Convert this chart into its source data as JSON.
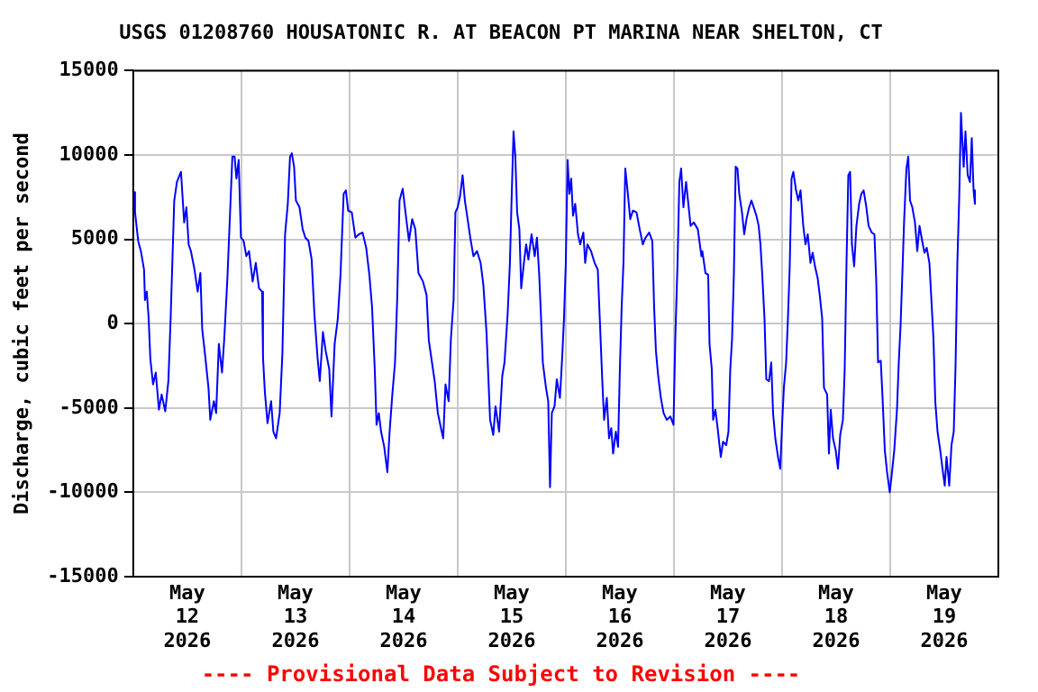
{
  "chart_data": {
    "type": "line",
    "title": "USGS 01208760 HOUSATONIC R. AT BEACON PT MARINA NEAR SHELTON, CT",
    "ylabel": "Discharge, cubic feet per second",
    "annotations": [
      "---- Provisional Data Subject to Revision ----"
    ],
    "xlim": [
      "2026-05-12T00:00",
      "2026-05-20T00:00"
    ],
    "xticks": [
      {
        "value": "2026-05-12T00:00",
        "label": null
      },
      {
        "value": "2026-05-12T12:00",
        "label": "May 12 2026"
      },
      {
        "value": "2026-05-13T00:00",
        "label": null
      },
      {
        "value": "2026-05-13T12:00",
        "label": "May 13 2026"
      },
      {
        "value": "2026-05-14T00:00",
        "label": null
      },
      {
        "value": "2026-05-14T12:00",
        "label": "May 14 2026"
      },
      {
        "value": "2026-05-15T00:00",
        "label": null
      },
      {
        "value": "2026-05-15T12:00",
        "label": "May 15 2026"
      },
      {
        "value": "2026-05-16T00:00",
        "label": null
      },
      {
        "value": "2026-05-16T12:00",
        "label": "May 16 2026"
      },
      {
        "value": "2026-05-17T00:00",
        "label": null
      },
      {
        "value": "2026-05-17T12:00",
        "label": "May 17 2026"
      },
      {
        "value": "2026-05-18T00:00",
        "label": null
      },
      {
        "value": "2026-05-18T12:00",
        "label": "May 18 2026"
      },
      {
        "value": "2026-05-19T00:00",
        "label": null
      },
      {
        "value": "2026-05-19T12:00",
        "label": "May 19 2026"
      },
      {
        "value": "2026-05-20T00:00",
        "label": null
      }
    ],
    "ylim": [
      -15000,
      15000
    ],
    "yticks": [
      -15000,
      -10000,
      -5000,
      0,
      5000,
      10000,
      15000
    ],
    "grid": true,
    "legend": false,
    "marker": "none",
    "line_style": "solid",
    "x": [
      "2026-05-12T00:12",
      "2026-05-12T00:24",
      "2026-05-12T01:06",
      "2026-05-12T01:42",
      "2026-05-12T02:24",
      "2026-05-12T02:36",
      "2026-05-12T03:00",
      "2026-05-12T03:24",
      "2026-05-12T03:48",
      "2026-05-12T04:24",
      "2026-05-12T05:00",
      "2026-05-12T05:42",
      "2026-05-12T06:18",
      "2026-05-12T07:06",
      "2026-05-12T07:48",
      "2026-05-12T08:18",
      "2026-05-12T09:06",
      "2026-05-12T09:42",
      "2026-05-12T10:36",
      "2026-05-12T11:18",
      "2026-05-12T11:48",
      "2026-05-12T12:18",
      "2026-05-12T12:48",
      "2026-05-12T13:36",
      "2026-05-12T14:18",
      "2026-05-12T14:54",
      "2026-05-12T15:18",
      "2026-05-12T16:00",
      "2026-05-12T16:42",
      "2026-05-12T17:06",
      "2026-05-12T17:54",
      "2026-05-12T18:24",
      "2026-05-12T19:00",
      "2026-05-12T19:42",
      "2026-05-12T20:12",
      "2026-05-12T20:54",
      "2026-05-12T21:36",
      "2026-05-12T22:00",
      "2026-05-12T22:30",
      "2026-05-12T22:54",
      "2026-05-12T23:24",
      "2026-05-12T23:54",
      "2026-05-13T00:30",
      "2026-05-13T01:06",
      "2026-05-13T01:42",
      "2026-05-13T02:30",
      "2026-05-13T03:12",
      "2026-05-13T03:54",
      "2026-05-13T04:36",
      "2026-05-13T04:48",
      "2026-05-13T05:12",
      "2026-05-13T05:48",
      "2026-05-13T06:36",
      "2026-05-13T07:06",
      "2026-05-13T07:42",
      "2026-05-13T08:30",
      "2026-05-13T09:06",
      "2026-05-13T09:42",
      "2026-05-13T10:18",
      "2026-05-13T10:48",
      "2026-05-13T11:12",
      "2026-05-13T11:42",
      "2026-05-13T12:06",
      "2026-05-13T12:54",
      "2026-05-13T13:36",
      "2026-05-13T14:12",
      "2026-05-13T14:54",
      "2026-05-13T15:36",
      "2026-05-13T16:12",
      "2026-05-13T16:54",
      "2026-05-13T17:24",
      "2026-05-13T18:06",
      "2026-05-13T18:42",
      "2026-05-13T19:30",
      "2026-05-13T20:00",
      "2026-05-13T20:42",
      "2026-05-13T21:24",
      "2026-05-13T22:00",
      "2026-05-13T22:42",
      "2026-05-13T23:12",
      "2026-05-13T23:42",
      "2026-05-14T00:30",
      "2026-05-14T01:18",
      "2026-05-14T02:06",
      "2026-05-14T02:54",
      "2026-05-14T03:42",
      "2026-05-14T04:24",
      "2026-05-14T05:00",
      "2026-05-14T05:36",
      "2026-05-14T06:00",
      "2026-05-14T06:30",
      "2026-05-14T07:00",
      "2026-05-14T07:42",
      "2026-05-14T08:24",
      "2026-05-14T08:54",
      "2026-05-14T09:30",
      "2026-05-14T10:06",
      "2026-05-14T10:36",
      "2026-05-14T11:06",
      "2026-05-14T11:48",
      "2026-05-14T12:36",
      "2026-05-14T13:12",
      "2026-05-14T13:54",
      "2026-05-14T14:36",
      "2026-05-14T15:18",
      "2026-05-14T16:18",
      "2026-05-14T17:06",
      "2026-05-14T17:36",
      "2026-05-14T18:18",
      "2026-05-14T18:54",
      "2026-05-14T19:36",
      "2026-05-14T20:18",
      "2026-05-14T20:48",
      "2026-05-14T21:18",
      "2026-05-14T22:00",
      "2026-05-14T22:30",
      "2026-05-14T23:06",
      "2026-05-14T23:30",
      "2026-05-15T00:00",
      "2026-05-15T00:30",
      "2026-05-15T01:06",
      "2026-05-15T01:36",
      "2026-05-15T02:06",
      "2026-05-15T02:48",
      "2026-05-15T03:30",
      "2026-05-15T04:18",
      "2026-05-15T05:06",
      "2026-05-15T05:42",
      "2026-05-15T06:24",
      "2026-05-15T06:48",
      "2026-05-15T07:12",
      "2026-05-15T07:54",
      "2026-05-15T08:24",
      "2026-05-15T09:12",
      "2026-05-15T09:54",
      "2026-05-15T10:24",
      "2026-05-15T11:06",
      "2026-05-15T11:36",
      "2026-05-15T11:54",
      "2026-05-15T12:24",
      "2026-05-15T12:48",
      "2026-05-15T13:12",
      "2026-05-15T13:42",
      "2026-05-15T14:06",
      "2026-05-15T14:42",
      "2026-05-15T15:12",
      "2026-05-15T15:42",
      "2026-05-15T16:24",
      "2026-05-15T17:06",
      "2026-05-15T17:36",
      "2026-05-15T18:06",
      "2026-05-15T18:30",
      "2026-05-15T18:54",
      "2026-05-15T19:36",
      "2026-05-15T20:06",
      "2026-05-15T20:30",
      "2026-05-15T20:54",
      "2026-05-15T21:30",
      "2026-05-15T22:00",
      "2026-05-15T22:42",
      "2026-05-15T23:12",
      "2026-05-15T23:36",
      "2026-05-16T00:00",
      "2026-05-16T00:24",
      "2026-05-16T00:48",
      "2026-05-16T01:12",
      "2026-05-16T01:36",
      "2026-05-16T02:06",
      "2026-05-16T02:42",
      "2026-05-16T03:12",
      "2026-05-16T03:54",
      "2026-05-16T04:18",
      "2026-05-16T04:48",
      "2026-05-16T05:36",
      "2026-05-16T06:24",
      "2026-05-16T07:06",
      "2026-05-16T07:36",
      "2026-05-16T08:06",
      "2026-05-16T08:30",
      "2026-05-16T09:06",
      "2026-05-16T09:36",
      "2026-05-16T10:06",
      "2026-05-16T10:30",
      "2026-05-16T11:06",
      "2026-05-16T11:36",
      "2026-05-16T12:00",
      "2026-05-16T12:24",
      "2026-05-16T12:48",
      "2026-05-16T13:12",
      "2026-05-16T13:42",
      "2026-05-16T14:18",
      "2026-05-16T14:54",
      "2026-05-16T15:42",
      "2026-05-16T16:24",
      "2026-05-16T17:06",
      "2026-05-16T17:42",
      "2026-05-16T18:30",
      "2026-05-16T19:12",
      "2026-05-16T19:36",
      "2026-05-16T20:00",
      "2026-05-16T20:30",
      "2026-05-16T21:06",
      "2026-05-16T21:42",
      "2026-05-16T22:24",
      "2026-05-16T23:12",
      "2026-05-16T23:54",
      "2026-05-17T00:18",
      "2026-05-17T00:48",
      "2026-05-17T01:12",
      "2026-05-17T01:36",
      "2026-05-17T02:06",
      "2026-05-17T02:42",
      "2026-05-17T03:12",
      "2026-05-17T03:42",
      "2026-05-17T04:24",
      "2026-05-17T05:18",
      "2026-05-17T06:06",
      "2026-05-17T06:18",
      "2026-05-17T07:00",
      "2026-05-17T07:36",
      "2026-05-17T07:54",
      "2026-05-17T08:24",
      "2026-05-17T08:42",
      "2026-05-17T09:12",
      "2026-05-17T09:42",
      "2026-05-17T10:24",
      "2026-05-17T10:54",
      "2026-05-17T11:36",
      "2026-05-17T12:06",
      "2026-05-17T12:30",
      "2026-05-17T12:54",
      "2026-05-17T13:18",
      "2026-05-17T13:42",
      "2026-05-17T14:06",
      "2026-05-17T14:30",
      "2026-05-17T15:06",
      "2026-05-17T15:36",
      "2026-05-17T16:06",
      "2026-05-17T16:42",
      "2026-05-17T17:12",
      "2026-05-17T17:42",
      "2026-05-17T18:18",
      "2026-05-17T18:48",
      "2026-05-17T19:12",
      "2026-05-17T19:36",
      "2026-05-17T20:06",
      "2026-05-17T20:30",
      "2026-05-17T21:06",
      "2026-05-17T21:36",
      "2026-05-17T22:00",
      "2026-05-17T22:30",
      "2026-05-17T23:06",
      "2026-05-17T23:36",
      "2026-05-18T00:00",
      "2026-05-18T00:24",
      "2026-05-18T00:54",
      "2026-05-18T01:18",
      "2026-05-18T01:42",
      "2026-05-18T02:06",
      "2026-05-18T02:30",
      "2026-05-18T03:06",
      "2026-05-18T03:36",
      "2026-05-18T04:06",
      "2026-05-18T04:42",
      "2026-05-18T05:12",
      "2026-05-18T05:42",
      "2026-05-18T06:18",
      "2026-05-18T06:48",
      "2026-05-18T07:18",
      "2026-05-18T07:54",
      "2026-05-18T08:24",
      "2026-05-18T08:54",
      "2026-05-18T09:18",
      "2026-05-18T10:00",
      "2026-05-18T10:24",
      "2026-05-18T10:48",
      "2026-05-18T11:18",
      "2026-05-18T11:54",
      "2026-05-18T12:24",
      "2026-05-18T12:54",
      "2026-05-18T13:30",
      "2026-05-18T13:54",
      "2026-05-18T14:18",
      "2026-05-18T14:42",
      "2026-05-18T15:06",
      "2026-05-18T15:30",
      "2026-05-18T16:00",
      "2026-05-18T16:30",
      "2026-05-18T17:06",
      "2026-05-18T17:36",
      "2026-05-18T18:06",
      "2026-05-18T18:42",
      "2026-05-18T19:12",
      "2026-05-18T19:54",
      "2026-05-18T20:30",
      "2026-05-18T20:54",
      "2026-05-18T21:18",
      "2026-05-18T21:54",
      "2026-05-18T22:18",
      "2026-05-18T22:48",
      "2026-05-18T23:18",
      "2026-05-18T23:54",
      "2026-05-19T00:24",
      "2026-05-19T00:54",
      "2026-05-19T01:30",
      "2026-05-19T01:54",
      "2026-05-19T02:18",
      "2026-05-19T02:42",
      "2026-05-19T03:06",
      "2026-05-19T03:36",
      "2026-05-19T04:00",
      "2026-05-19T04:24",
      "2026-05-19T04:54",
      "2026-05-19T05:30",
      "2026-05-19T06:00",
      "2026-05-19T06:30",
      "2026-05-19T07:06",
      "2026-05-19T07:36",
      "2026-05-19T08:06",
      "2026-05-19T08:42",
      "2026-05-19T09:06",
      "2026-05-19T09:36",
      "2026-05-19T10:00",
      "2026-05-19T10:30",
      "2026-05-19T11:06",
      "2026-05-19T11:36",
      "2026-05-19T12:06",
      "2026-05-19T12:30",
      "2026-05-19T13:06",
      "2026-05-19T13:36",
      "2026-05-19T14:06",
      "2026-05-19T14:30",
      "2026-05-19T14:54",
      "2026-05-19T15:18",
      "2026-05-19T15:42",
      "2026-05-19T16:18",
      "2026-05-19T16:42",
      "2026-05-19T17:12",
      "2026-05-19T17:42",
      "2026-05-19T18:06",
      "2026-05-19T18:30",
      "2026-05-19T18:48"
    ],
    "series": [
      {
        "color": "#0000ff",
        "values": [
          7800,
          6600,
          4900,
          4300,
          3200,
          1400,
          1900,
          400,
          -2100,
          -3600,
          -2900,
          -5100,
          -4200,
          -5200,
          -3400,
          300,
          7300,
          8400,
          9000,
          6000,
          6900,
          4700,
          4300,
          3200,
          1900,
          3000,
          -300,
          -2000,
          -3800,
          -5700,
          -4600,
          -5300,
          -1200,
          -2900,
          -900,
          2700,
          7300,
          9900,
          9900,
          8600,
          9700,
          5100,
          4900,
          4000,
          4300,
          2500,
          3600,
          2100,
          1900,
          -2000,
          -4000,
          -5900,
          -4600,
          -6400,
          -6800,
          -5300,
          -1800,
          5300,
          7100,
          9900,
          10100,
          9300,
          7300,
          6900,
          5600,
          5100,
          4900,
          3800,
          600,
          -2000,
          -3400,
          -500,
          -1600,
          -2700,
          -5500,
          -1200,
          300,
          2900,
          7700,
          7900,
          6700,
          6600,
          5100,
          5300,
          5400,
          4500,
          2900,
          1000,
          -2700,
          -6000,
          -5300,
          -6400,
          -7300,
          -8800,
          -6400,
          -4200,
          -2300,
          1600,
          7300,
          8000,
          6200,
          4900,
          6200,
          5600,
          3000,
          2500,
          1700,
          -1000,
          -2300,
          -3400,
          -5300,
          -6200,
          -6800,
          -3600,
          -4600,
          -900,
          1400,
          6600,
          6900,
          7500,
          8800,
          7300,
          6400,
          5100,
          4000,
          4300,
          3600,
          2300,
          -500,
          -3100,
          -5700,
          -6600,
          -4900,
          -6400,
          -3100,
          -2300,
          600,
          3600,
          6700,
          11400,
          9900,
          6600,
          5600,
          2100,
          3600,
          4700,
          3800,
          5300,
          4000,
          5100,
          2900,
          400,
          -2300,
          -3800,
          -4600,
          -9700,
          -5300,
          -4900,
          -3300,
          -4400,
          -2000,
          300,
          3600,
          9700,
          7700,
          8600,
          6400,
          7100,
          5300,
          4700,
          5400,
          3600,
          4700,
          4300,
          3600,
          3200,
          -100,
          -3400,
          -5700,
          -4400,
          -6800,
          -6200,
          -7700,
          -6400,
          -7300,
          -2700,
          1000,
          3600,
          9200,
          7900,
          6200,
          6700,
          6600,
          5600,
          4700,
          5100,
          5400,
          4900,
          1000,
          -1600,
          -3100,
          -4400,
          -5300,
          -5700,
          -5500,
          -6000,
          -900,
          3600,
          8400,
          9200,
          6900,
          8400,
          7100,
          5800,
          6000,
          5600,
          4000,
          4300,
          3000,
          2900,
          -1200,
          -2700,
          -5700,
          -5100,
          -6200,
          -7900,
          -7000,
          -7200,
          -6400,
          -2700,
          -900,
          2900,
          9300,
          9200,
          7700,
          6600,
          5300,
          6200,
          6900,
          7300,
          6900,
          6400,
          5800,
          4700,
          2900,
          300,
          -3300,
          -3400,
          -2300,
          -5300,
          -6800,
          -7900,
          -8600,
          -6000,
          -3800,
          -2300,
          300,
          3400,
          8600,
          9000,
          7900,
          7300,
          7900,
          5800,
          4700,
          5300,
          3600,
          4200,
          3400,
          2700,
          1600,
          300,
          -3800,
          -4200,
          -7700,
          -5100,
          -6800,
          -7500,
          -8600,
          -6600,
          -5700,
          -2700,
          3600,
          8800,
          9000,
          4700,
          3400,
          5800,
          7100,
          7700,
          7900,
          6900,
          5800,
          5400,
          5300,
          2500,
          -2300,
          -2200,
          -4400,
          -7500,
          -8800,
          -10000,
          -8800,
          -7500,
          -5100,
          -2300,
          -100,
          3000,
          6200,
          9200,
          9900,
          7300,
          6900,
          6000,
          4300,
          5800,
          4900,
          4200,
          4500,
          3600,
          1600,
          -900,
          -4600,
          -6400,
          -7500,
          -8600,
          -9600,
          -7900,
          -9600,
          -7200,
          -6400,
          -2500,
          3600,
          7300,
          12500,
          9300,
          11400,
          8800,
          8400,
          11000,
          7900,
          7100
        ]
      }
    ]
  }
}
